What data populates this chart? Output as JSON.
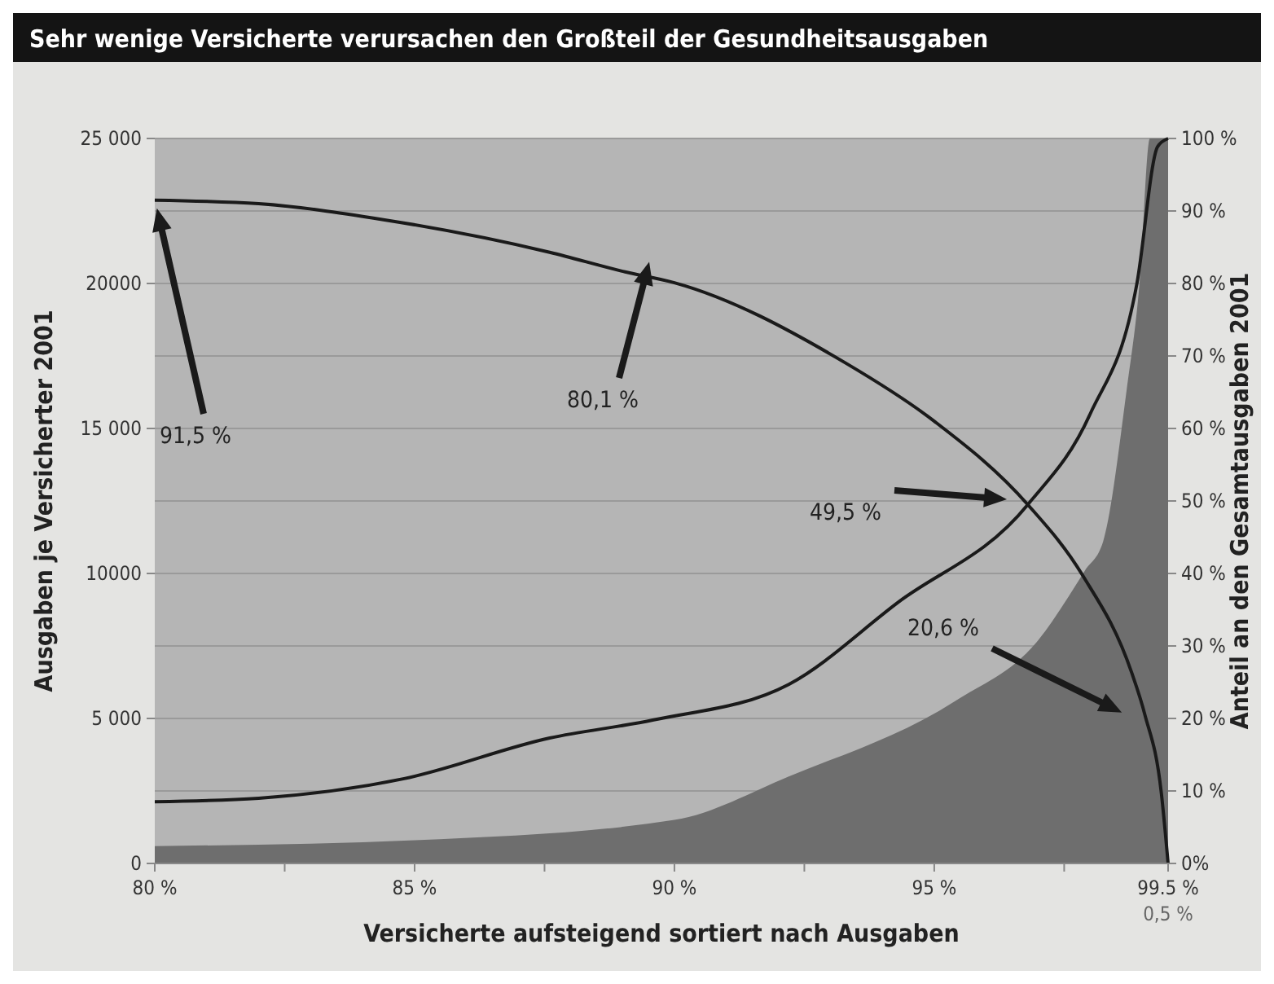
{
  "chart_data": {
    "type": "line",
    "title": "Sehr wenige Versicherte verursachen den Großteil der Gesundheitsausgaben",
    "xlabel": "Versicherte aufsteigend sortiert nach Ausgaben",
    "ylabel": "Ausgaben je Versicherter 2001",
    "y2label": "Anteil an den Gesamtausgaben 2001",
    "xlim": [
      80,
      99.5
    ],
    "xticks": [
      {
        "value": 80,
        "label": "80 %"
      },
      {
        "value": 82.5,
        "label": null
      },
      {
        "value": 85,
        "label": "85 %"
      },
      {
        "value": 87.5,
        "label": null
      },
      {
        "value": 90,
        "label": "90 %"
      },
      {
        "value": 92.5,
        "label": null
      },
      {
        "value": 95,
        "label": "95 %"
      },
      {
        "value": 97.5,
        "label": null
      },
      {
        "value": 99.5,
        "label": "99.5 %"
      }
    ],
    "ylim": [
      0,
      25000
    ],
    "yticks": [
      {
        "value": 0,
        "label": "0"
      },
      {
        "value": 5000,
        "label": "5 000"
      },
      {
        "value": 10000,
        "label": "10000"
      },
      {
        "value": 15000,
        "label": "15 000"
      },
      {
        "value": 20000,
        "label": "20000"
      },
      {
        "value": 25000,
        "label": "25 000"
      }
    ],
    "y2lim": [
      0,
      100
    ],
    "y2ticks": [
      {
        "value": 0,
        "label": "0%"
      },
      {
        "value": 10,
        "label": "10 %"
      },
      {
        "value": 20,
        "label": "20 %"
      },
      {
        "value": 30,
        "label": "30 %"
      },
      {
        "value": 40,
        "label": "40 %"
      },
      {
        "value": 50,
        "label": "50 %"
      },
      {
        "value": 60,
        "label": "60 %"
      },
      {
        "value": 70,
        "label": "70 %"
      },
      {
        "value": 80,
        "label": "80 %"
      },
      {
        "value": 90,
        "label": "90 %"
      },
      {
        "value": 100,
        "label": "100 %"
      }
    ],
    "grid": "y",
    "series": [
      {
        "type": "area",
        "color": "#6e6e6e",
        "x": [
          80,
          85,
          90,
          92.2,
          95.4,
          97,
          97.9,
          98.25,
          98.7,
          98.95,
          99.15,
          99.5
        ],
        "values": [
          600,
          800,
          1500,
          3000,
          5600,
          7700,
          10100,
          11100,
          16300,
          20000,
          25000,
          25000
        ]
      },
      {
        "axis": "y2",
        "color": "#1a1a1a",
        "x": [
          80,
          82,
          84.4,
          87.6,
          89.05,
          90,
          93.3,
          95,
          96.8,
          97.85,
          98.8,
          99.05,
          99.37,
          99.5
        ],
        "values": [
          91.5,
          91,
          88.8,
          84.3,
          81.6,
          80.1,
          69,
          61,
          49.5,
          39.8,
          26.3,
          20.6,
          9.7,
          0
        ]
      },
      {
        "axis": "y2",
        "color": "#1a1a1a",
        "x": [
          80,
          82,
          84.8,
          87.6,
          89.6,
          92.2,
          94.3,
          96.8,
          98,
          98.9,
          99.3,
          99.5
        ],
        "values": [
          8.5,
          9,
          11.7,
          17.3,
          19.8,
          24.7,
          36,
          49.5,
          62,
          80,
          98.9,
          100
        ]
      }
    ],
    "annotations": [
      "0,5 %",
      "91,5 %",
      "80,1 %",
      "49,5 %",
      "20,6 %"
    ]
  }
}
